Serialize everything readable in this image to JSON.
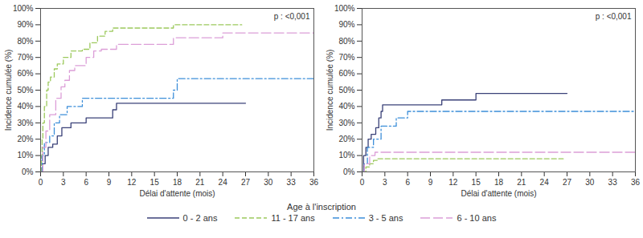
{
  "chart_data": [
    {
      "type": "line",
      "annotations": [
        "p : <0,001"
      ],
      "xlabel": "Délai d'attente (mois)",
      "ylabel": "Incidence cumulée (%)",
      "xlim": [
        0,
        36
      ],
      "xticks": [
        0,
        3,
        6,
        9,
        12,
        15,
        18,
        21,
        24,
        27,
        30,
        33,
        36
      ],
      "ylim": [
        0,
        100
      ],
      "yticks": [
        {
          "value": 0,
          "label": "0%"
        },
        {
          "value": 10,
          "label": "10%"
        },
        {
          "value": 20,
          "label": "20%"
        },
        {
          "value": 30,
          "label": "30%"
        },
        {
          "value": 40,
          "label": "40%"
        },
        {
          "value": 50,
          "label": "50%"
        },
        {
          "value": 60,
          "label": "60%"
        },
        {
          "value": 70,
          "label": "70%"
        },
        {
          "value": 80,
          "label": "80%"
        },
        {
          "value": 90,
          "label": "90%"
        },
        {
          "value": 100,
          "label": "100%"
        }
      ],
      "grid": false,
      "legend": "bottom",
      "legend_title": "Age à l'inscription",
      "series": [
        {
          "name": "0 - 2 ans",
          "color": "#3a4178",
          "line_style": "solid",
          "x": [
            0,
            0.3,
            0.6,
            1,
            1.6,
            2.2,
            2.8,
            4,
            6,
            9.5,
            10,
            27
          ],
          "values": [
            0,
            5,
            10,
            15,
            17,
            22,
            27,
            30,
            33,
            38,
            42,
            42
          ]
        },
        {
          "name": "11 - 17 ans",
          "color": "#9cc95c",
          "line_style": "dashed",
          "x": [
            0,
            0.1,
            0.2,
            0.3,
            0.5,
            0.8,
            1,
            1.3,
            1.8,
            2.2,
            3,
            4,
            5.5,
            6.5,
            7.5,
            8.5,
            9.5,
            17.5,
            26.5
          ],
          "values": [
            0,
            10,
            20,
            30,
            40,
            50,
            55,
            58,
            63,
            66,
            70,
            74,
            75,
            79,
            83,
            86,
            88,
            90,
            90
          ]
        },
        {
          "name": "3 - 5 ans",
          "color": "#3d8fd9",
          "line_style": "dashdot",
          "x": [
            0,
            0.2,
            0.5,
            1.2,
            1.8,
            2.5,
            3.5,
            5.5,
            17.5,
            18,
            36
          ],
          "values": [
            0,
            10,
            18,
            22,
            30,
            35,
            40,
            45,
            50,
            57,
            57
          ]
        },
        {
          "name": "6 - 10 ans",
          "color": "#dc9ed8",
          "line_style": "longdash",
          "x": [
            0,
            0.3,
            0.7,
            1.2,
            2,
            2.7,
            3.2,
            3.8,
            4.5,
            6,
            7,
            8,
            10,
            17.5,
            24,
            36
          ],
          "values": [
            0,
            15,
            25,
            35,
            45,
            52,
            56,
            62,
            65,
            70,
            74,
            75,
            78,
            82,
            85,
            85
          ]
        }
      ]
    },
    {
      "type": "line",
      "annotations": [
        "p : <0,001"
      ],
      "xlabel": "Délai d'attente (mois)",
      "ylabel": "Incidence cumulée (%)",
      "xlim": [
        0,
        36
      ],
      "xticks": [
        0,
        3,
        6,
        9,
        12,
        15,
        18,
        21,
        24,
        27,
        30,
        33,
        36
      ],
      "ylim": [
        0,
        100
      ],
      "yticks": [
        {
          "value": 0,
          "label": "0%"
        },
        {
          "value": 10,
          "label": "10%"
        },
        {
          "value": 20,
          "label": "20%"
        },
        {
          "value": 30,
          "label": "30%"
        },
        {
          "value": 40,
          "label": "40%"
        },
        {
          "value": 50,
          "label": "50%"
        },
        {
          "value": 60,
          "label": "60%"
        },
        {
          "value": 70,
          "label": "70%"
        },
        {
          "value": 80,
          "label": "80%"
        },
        {
          "value": 90,
          "label": "90%"
        },
        {
          "value": 100,
          "label": "100%"
        }
      ],
      "grid": false,
      "series": [
        {
          "name": "0 - 2 ans",
          "color": "#3a4178",
          "line_style": "solid",
          "x": [
            0,
            0.2,
            0.5,
            0.8,
            1.2,
            1.8,
            2.2,
            2.5,
            2.7,
            10.5,
            15,
            27
          ],
          "values": [
            0,
            10,
            15,
            20,
            23,
            27,
            33,
            37,
            41,
            44,
            48,
            48
          ]
        },
        {
          "name": "11 - 17 ans",
          "color": "#9cc95c",
          "line_style": "dashed",
          "x": [
            0,
            0.5,
            1,
            1.5,
            2,
            26.5
          ],
          "values": [
            0,
            3,
            5,
            7,
            8,
            8
          ]
        },
        {
          "name": "3 - 5 ans",
          "color": "#3d8fd9",
          "line_style": "dashdot",
          "x": [
            0,
            0.3,
            0.7,
            1.5,
            2.5,
            4.5,
            6,
            36
          ],
          "values": [
            0,
            5,
            15,
            20,
            28,
            33,
            37,
            37
          ]
        },
        {
          "name": "6 - 10 ans",
          "color": "#dc9ed8",
          "line_style": "longdash",
          "x": [
            0,
            0.3,
            1,
            1.7,
            36
          ],
          "values": [
            0,
            5,
            10,
            12,
            12
          ]
        }
      ]
    }
  ]
}
